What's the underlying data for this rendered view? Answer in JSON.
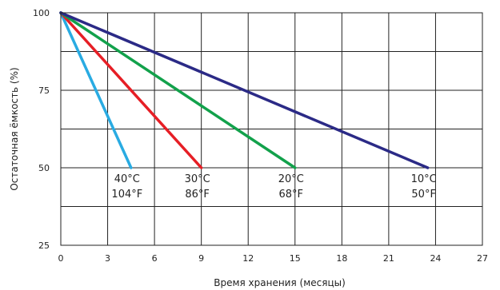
{
  "chart_data": {
    "type": "line",
    "title": "",
    "xlabel": "Время хранения (месяцы)",
    "ylabel": "Остаточная ёмкость (%)",
    "xlim": [
      0,
      27
    ],
    "ylim": [
      25,
      100
    ],
    "xticks": [
      0,
      3,
      6,
      9,
      12,
      15,
      18,
      21,
      24,
      27
    ],
    "yticks": [
      25,
      50,
      75,
      100
    ],
    "grid": true,
    "legend": "none",
    "series": [
      {
        "label": [
          "40°C",
          "104°F"
        ],
        "color": "#29abe2",
        "x": [
          0,
          4.5
        ],
        "y": [
          100,
          50
        ]
      },
      {
        "label": [
          "30°C",
          "86°F"
        ],
        "color": "#e61e25",
        "x": [
          0,
          9
        ],
        "y": [
          100,
          50
        ]
      },
      {
        "label": [
          "20°C",
          "68°F"
        ],
        "color": "#12a14b",
        "x": [
          0,
          15
        ],
        "y": [
          100,
          50
        ]
      },
      {
        "label": [
          "10°C",
          "50°F"
        ],
        "color": "#2b2a86",
        "x": [
          0,
          23.5
        ],
        "y": [
          100,
          50
        ]
      }
    ]
  }
}
